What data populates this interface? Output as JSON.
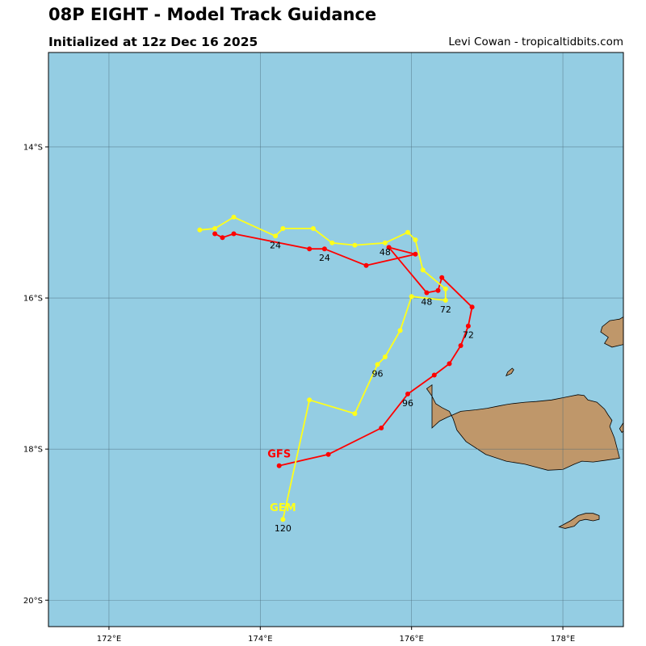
{
  "header": {
    "title": "08P EIGHT - Model Track Guidance",
    "subtitle": "Initialized at 12z Dec 16 2025",
    "credit": "Levi Cowan - tropicaltidbits.com"
  },
  "colors": {
    "ocean": "#94cde3",
    "land": "#bf976a",
    "grid": "#4a6a78",
    "GFS": "#ff0000",
    "GEM": "#ffff1a"
  },
  "axes": {
    "lon_range": [
      171.2,
      178.8
    ],
    "lat_range": [
      -20.35,
      -12.75
    ],
    "lon_ticks": [
      {
        "v": 172,
        "label": "172°E"
      },
      {
        "v": 174,
        "label": "174°E"
      },
      {
        "v": 176,
        "label": "176°E"
      },
      {
        "v": 178,
        "label": "178°E"
      }
    ],
    "lat_ticks": [
      {
        "v": -14,
        "label": "14°S"
      },
      {
        "v": -16,
        "label": "16°S"
      },
      {
        "v": -18,
        "label": "18°S"
      },
      {
        "v": -20,
        "label": "20°S"
      }
    ],
    "grid": true
  },
  "chart_data": {
    "type": "map",
    "tracks": [
      {
        "model": "GFS",
        "label": "GFS",
        "color": "#ff0000",
        "points": [
          [
            173.4,
            -15.15
          ],
          [
            173.5,
            -15.2
          ],
          [
            173.65,
            -15.15
          ],
          [
            174.65,
            -15.35
          ],
          [
            174.85,
            -15.35
          ],
          [
            175.4,
            -15.57
          ],
          [
            176.05,
            -15.42
          ],
          [
            175.7,
            -15.33
          ],
          [
            176.2,
            -15.93
          ],
          [
            176.35,
            -15.9
          ],
          [
            176.4,
            -15.73
          ],
          [
            176.8,
            -16.12
          ],
          [
            176.75,
            -16.37
          ],
          [
            176.65,
            -16.63
          ],
          [
            176.5,
            -16.87
          ],
          [
            176.3,
            -17.02
          ],
          [
            175.95,
            -17.27
          ],
          [
            175.6,
            -17.72
          ],
          [
            174.9,
            -18.07
          ],
          [
            174.25,
            -18.22
          ]
        ],
        "hour_labels": [
          {
            "text": "24",
            "lon": 174.85,
            "lat": -15.35
          },
          {
            "text": "48",
            "lon": 176.2,
            "lat": -15.93
          },
          {
            "text": "72",
            "lon": 176.75,
            "lat": -16.37
          },
          {
            "text": "96",
            "lon": 175.95,
            "lat": -17.27
          }
        ]
      },
      {
        "model": "GEM",
        "label": "GEM",
        "color": "#ffff1a",
        "points": [
          [
            173.2,
            -15.1
          ],
          [
            173.4,
            -15.08
          ],
          [
            173.65,
            -14.93
          ],
          [
            174.2,
            -15.18
          ],
          [
            174.3,
            -15.08
          ],
          [
            174.7,
            -15.08
          ],
          [
            174.95,
            -15.27
          ],
          [
            175.25,
            -15.3
          ],
          [
            175.65,
            -15.27
          ],
          [
            175.95,
            -15.13
          ],
          [
            176.05,
            -15.23
          ],
          [
            176.15,
            -15.63
          ],
          [
            176.45,
            -15.88
          ],
          [
            176.45,
            -16.03
          ],
          [
            176.0,
            -15.98
          ],
          [
            175.85,
            -16.43
          ],
          [
            175.65,
            -16.78
          ],
          [
            175.55,
            -16.88
          ],
          [
            175.25,
            -17.53
          ],
          [
            174.65,
            -17.35
          ],
          [
            174.3,
            -18.93
          ]
        ],
        "hour_labels": [
          {
            "text": "24",
            "lon": 174.2,
            "lat": -15.18
          },
          {
            "text": "48",
            "lon": 175.65,
            "lat": -15.27
          },
          {
            "text": "72",
            "lon": 176.45,
            "lat": -16.03
          },
          {
            "text": "96",
            "lon": 175.55,
            "lat": -16.88
          },
          {
            "text": "120",
            "lon": 174.3,
            "lat": -18.93
          }
        ]
      }
    ],
    "land": [
      {
        "name": "Viti Levu",
        "polygon": [
          [
            176.27,
            -17.72
          ],
          [
            176.37,
            -17.63
          ],
          [
            176.47,
            -17.58
          ],
          [
            176.65,
            -17.5
          ],
          [
            176.85,
            -17.48
          ],
          [
            177.0,
            -17.46
          ],
          [
            177.15,
            -17.43
          ],
          [
            177.25,
            -17.41
          ],
          [
            177.32,
            -17.4
          ],
          [
            177.5,
            -17.38
          ],
          [
            177.65,
            -17.37
          ],
          [
            177.85,
            -17.35
          ],
          [
            178.05,
            -17.31
          ],
          [
            178.2,
            -17.28
          ],
          [
            178.28,
            -17.29
          ],
          [
            178.33,
            -17.35
          ],
          [
            178.45,
            -17.38
          ],
          [
            178.55,
            -17.47
          ],
          [
            178.6,
            -17.55
          ],
          [
            178.65,
            -17.62
          ],
          [
            178.62,
            -17.7
          ],
          [
            178.68,
            -17.85
          ],
          [
            178.72,
            -18.0
          ],
          [
            178.75,
            -18.12
          ],
          [
            178.55,
            -18.15
          ],
          [
            178.4,
            -18.17
          ],
          [
            178.25,
            -18.16
          ],
          [
            178.15,
            -18.2
          ],
          [
            178.0,
            -18.27
          ],
          [
            177.8,
            -18.28
          ],
          [
            177.5,
            -18.2
          ],
          [
            177.25,
            -18.16
          ],
          [
            176.98,
            -18.07
          ],
          [
            176.72,
            -17.9
          ],
          [
            176.6,
            -17.75
          ],
          [
            176.55,
            -17.6
          ],
          [
            176.5,
            -17.5
          ],
          [
            176.4,
            -17.45
          ],
          [
            176.32,
            -17.4
          ],
          [
            176.27,
            -17.3
          ],
          [
            176.2,
            -17.2
          ],
          [
            176.27,
            -17.15
          ],
          [
            176.27,
            -17.72
          ]
        ]
      },
      {
        "name": "Vanua Levu",
        "polygon": [
          [
            179.3,
            -16.5
          ],
          [
            178.65,
            -16.65
          ],
          [
            178.55,
            -16.6
          ],
          [
            178.6,
            -16.52
          ],
          [
            178.5,
            -16.45
          ],
          [
            178.52,
            -16.38
          ],
          [
            178.62,
            -16.3
          ],
          [
            178.75,
            -16.28
          ],
          [
            178.8,
            -16.25
          ],
          [
            178.9,
            -16.27
          ],
          [
            179.3,
            -16.5
          ]
        ]
      },
      {
        "name": "Yasawa",
        "polygon": [
          [
            177.25,
            -17.03
          ],
          [
            177.27,
            -16.98
          ],
          [
            177.33,
            -16.93
          ],
          [
            177.35,
            -16.95
          ],
          [
            177.32,
            -17.0
          ],
          [
            177.25,
            -17.03
          ]
        ]
      },
      {
        "name": "Kadavu",
        "polygon": [
          [
            177.95,
            -19.03
          ],
          [
            178.1,
            -18.95
          ],
          [
            178.2,
            -18.88
          ],
          [
            178.3,
            -18.85
          ],
          [
            178.4,
            -18.85
          ],
          [
            178.48,
            -18.88
          ],
          [
            178.48,
            -18.93
          ],
          [
            178.4,
            -18.95
          ],
          [
            178.3,
            -18.93
          ],
          [
            178.22,
            -18.95
          ],
          [
            178.15,
            -19.02
          ],
          [
            178.03,
            -19.05
          ],
          [
            177.95,
            -19.03
          ]
        ]
      },
      {
        "name": "Ovalau",
        "polygon": [
          [
            178.8,
            -17.65
          ],
          [
            178.75,
            -17.73
          ],
          [
            178.78,
            -17.78
          ],
          [
            178.8,
            -17.76
          ],
          [
            178.8,
            -17.65
          ]
        ]
      }
    ]
  }
}
